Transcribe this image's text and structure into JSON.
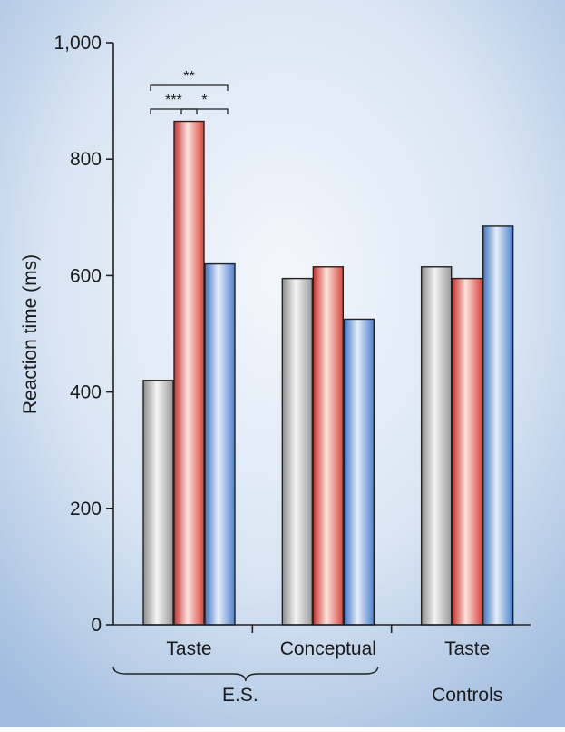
{
  "chart_data": {
    "type": "bar",
    "ylabel": "Reaction time (ms)",
    "ylim": [
      0,
      1000
    ],
    "yticks": [
      0,
      200,
      400,
      600,
      800,
      1000
    ],
    "ytick_labels": [
      "0",
      "200",
      "400",
      "600",
      "800",
      "1,000"
    ],
    "categories": [
      "Taste",
      "Conceptual",
      "Taste"
    ],
    "group_labels": [
      "E.S.",
      "Controls"
    ],
    "series": [
      {
        "values": [
          420,
          595,
          615
        ],
        "color": "#c8c8c8"
      },
      {
        "values": [
          865,
          615,
          595
        ],
        "color": "#e0453a"
      },
      {
        "values": [
          620,
          525,
          685
        ],
        "color": "#5b8fd4"
      }
    ],
    "annotations": [
      {
        "label": "**",
        "category": 0,
        "from_series": 0,
        "to_series": 2,
        "level": 2
      },
      {
        "label": "***",
        "category": 0,
        "from_series": 0,
        "to_series": 1,
        "level": 1
      },
      {
        "label": "*",
        "category": 0,
        "from_series": 1,
        "to_series": 2,
        "level": 1
      }
    ],
    "grid": false,
    "legend": "none"
  }
}
